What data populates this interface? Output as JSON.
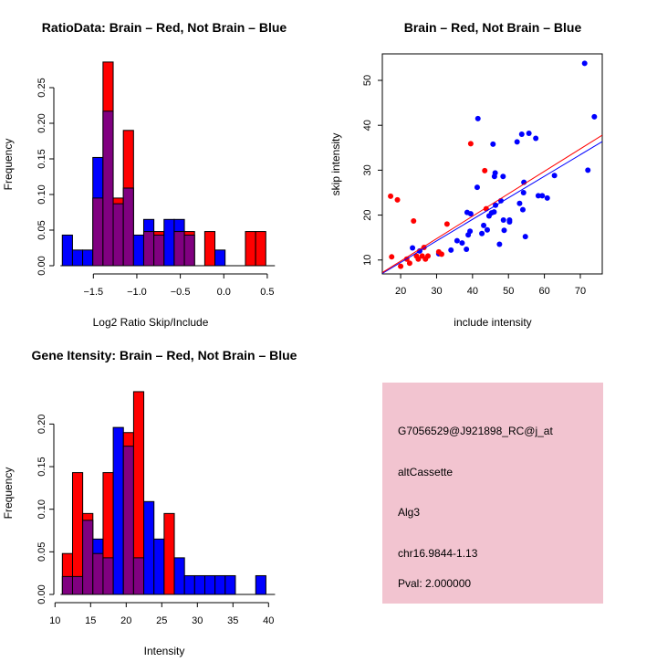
{
  "chart_data": [
    {
      "id": "ratio",
      "type": "bar",
      "title": "RatioData: Brain – Red, Not Brain – Blue",
      "xlabel": "Log2 Ratio Skip/Include",
      "ylabel": "Frequency",
      "bin_start": -1.857,
      "bin_width": 0.117,
      "xticks": [
        -1.5,
        -1.0,
        -0.5,
        0.0,
        0.5
      ],
      "xtick_labels": [
        "−1.5",
        "−1.0",
        "−0.5",
        "0.0",
        "0.5"
      ],
      "yticks": [
        0,
        0.05,
        0.1,
        0.15,
        0.2,
        0.25
      ],
      "ytick_labels": [
        "0.00",
        "0.05",
        "0.10",
        "0.15",
        "0.20",
        "0.25"
      ],
      "series": [
        {
          "name": "Brain",
          "color": "#ff0000",
          "values": [
            0,
            0,
            0,
            0.095,
            0.286,
            0.095,
            0.19,
            0,
            0.048,
            0.048,
            0,
            0.048,
            0.048,
            0,
            0.048,
            0,
            0,
            0,
            0.048,
            0.048
          ]
        },
        {
          "name": "Not Brain",
          "color": "#0000ff",
          "values": [
            0.043,
            0.022,
            0.022,
            0.152,
            0.217,
            0.087,
            0.109,
            0.043,
            0.065,
            0.043,
            0.065,
            0.065,
            0.043,
            0,
            0,
            0.022,
            0,
            0,
            0,
            0
          ]
        }
      ],
      "overlap_color": "#800080"
    },
    {
      "id": "intensity",
      "type": "bar",
      "title": "Gene Itensity: Brain – Red, Not Brain – Blue",
      "xlabel": "Intensity",
      "ylabel": "Frequency",
      "bin_start": 11.03,
      "bin_width": 1.43,
      "xticks": [
        10,
        15,
        20,
        25,
        30,
        35,
        40
      ],
      "xtick_labels": [
        "10",
        "15",
        "20",
        "25",
        "30",
        "35",
        "40"
      ],
      "yticks": [
        0,
        0.05,
        0.1,
        0.15,
        0.2
      ],
      "ytick_labels": [
        "0.00",
        "0.05",
        "0.10",
        "0.15",
        "0.20"
      ],
      "series": [
        {
          "name": "Brain",
          "color": "#ff0000",
          "values": [
            0.048,
            0.143,
            0.095,
            0.048,
            0.143,
            0,
            0.19,
            0.238,
            0,
            0,
            0.095,
            0,
            0,
            0,
            0,
            0,
            0,
            0,
            0,
            0
          ]
        },
        {
          "name": "Not Brain",
          "color": "#0000ff",
          "values": [
            0.021,
            0.021,
            0.087,
            0.065,
            0.043,
            0.196,
            0.174,
            0.043,
            0.109,
            0.065,
            0,
            0.043,
            0.022,
            0.022,
            0.022,
            0.022,
            0.022,
            0,
            0,
            0.022
          ]
        }
      ],
      "overlap_color": "#800080"
    },
    {
      "id": "scatter",
      "type": "scatter",
      "title": "Brain – Red, Not Brain – Blue",
      "xlabel": "include intensity",
      "ylabel": "skip intensity",
      "xlim": [
        14.9,
        76.1
      ],
      "ylim": [
        6.9,
        55.9
      ],
      "xticks": [
        20,
        30,
        40,
        50,
        60,
        70
      ],
      "yticks": [
        10,
        20,
        30,
        40,
        50
      ],
      "series": [
        {
          "name": "Not Brain",
          "color": "#0000ff",
          "fit": {
            "slope": 0.48,
            "intercept": -0.15
          },
          "points": [
            [
              71.2,
              53.8
            ],
            [
              73.9,
              41.9
            ],
            [
              41.5,
              41.5
            ],
            [
              53.7,
              38.0
            ],
            [
              55.7,
              38.2
            ],
            [
              57.6,
              37.1
            ],
            [
              52.4,
              36.3
            ],
            [
              45.7,
              35.8
            ],
            [
              72.1,
              30.0
            ],
            [
              46.3,
              29.4
            ],
            [
              46.1,
              28.6
            ],
            [
              48.5,
              28.6
            ],
            [
              62.8,
              28.8
            ],
            [
              54.3,
              27.3
            ],
            [
              41.3,
              26.2
            ],
            [
              54.2,
              25.0
            ],
            [
              58.3,
              24.3
            ],
            [
              59.4,
              24.3
            ],
            [
              60.8,
              23.8
            ],
            [
              47.9,
              23.2
            ],
            [
              46.4,
              22.2
            ],
            [
              53.1,
              22.6
            ],
            [
              54.0,
              21.2
            ],
            [
              46.0,
              20.7
            ],
            [
              45.3,
              20.5
            ],
            [
              44.6,
              19.8
            ],
            [
              38.5,
              20.6
            ],
            [
              39.5,
              20.3
            ],
            [
              48.6,
              18.9
            ],
            [
              50.3,
              18.9
            ],
            [
              50.3,
              18.5
            ],
            [
              43.1,
              17.7
            ],
            [
              44.1,
              16.7
            ],
            [
              48.8,
              16.6
            ],
            [
              39.3,
              16.4
            ],
            [
              38.8,
              15.6
            ],
            [
              42.6,
              15.9
            ],
            [
              54.7,
              15.2
            ],
            [
              35.7,
              14.3
            ],
            [
              37.1,
              13.8
            ],
            [
              47.5,
              13.5
            ],
            [
              38.3,
              12.4
            ],
            [
              34.0,
              12.2
            ],
            [
              23.3,
              12.7
            ],
            [
              25.3,
              12.0
            ],
            [
              30.6,
              11.4
            ]
          ]
        },
        {
          "name": "Brain",
          "color": "#ff0000",
          "fit": {
            "slope": 0.5,
            "intercept": -0.25
          },
          "points": [
            [
              17.2,
              24.2
            ],
            [
              19.1,
              23.4
            ],
            [
              39.5,
              35.9
            ],
            [
              43.4,
              29.9
            ],
            [
              43.8,
              21.4
            ],
            [
              23.6,
              18.7
            ],
            [
              32.9,
              18.0
            ],
            [
              26.5,
              12.8
            ],
            [
              17.5,
              10.7
            ],
            [
              20.0,
              8.6
            ],
            [
              21.7,
              10.2
            ],
            [
              22.5,
              9.3
            ],
            [
              24.4,
              10.9
            ],
            [
              24.9,
              10.2
            ],
            [
              26.0,
              10.9
            ],
            [
              26.9,
              10.2
            ],
            [
              27.6,
              10.9
            ],
            [
              30.6,
              11.8
            ],
            [
              31.4,
              11.3
            ]
          ]
        }
      ]
    }
  ],
  "info_panel": {
    "probe_id": "G7056529@J921898_RC@j_at",
    "event_type": "altCassette",
    "gene": "Alg3",
    "location": "chr16.9844-1.13",
    "pval": "Pval: 2.000000",
    "background": "#f2c4d0",
    "pval_color": "#a00000"
  }
}
